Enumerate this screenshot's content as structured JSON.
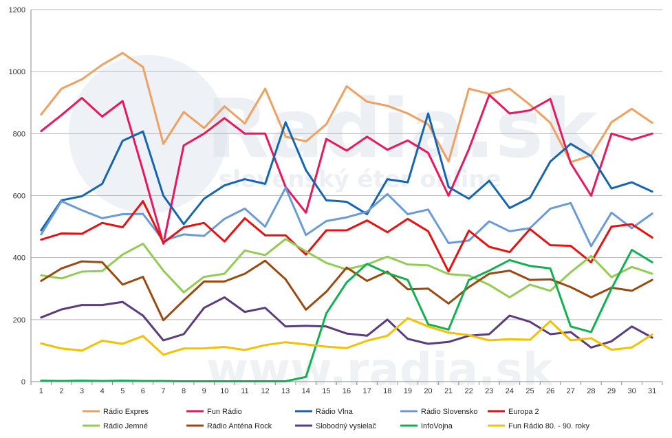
{
  "watermark": {
    "brand": "Radia.sk",
    "tagline": "slovenský éter online",
    "url": "www.radia.sk"
  },
  "chart_data": {
    "type": "line",
    "title": "",
    "xlabel": "",
    "ylabel": "",
    "ylim": [
      0,
      1200
    ],
    "yticks": [
      0,
      200,
      400,
      600,
      800,
      1000,
      1200
    ],
    "grid": true,
    "legend_position": "bottom",
    "x": [
      1,
      2,
      3,
      4,
      5,
      6,
      7,
      8,
      9,
      10,
      11,
      12,
      13,
      14,
      15,
      16,
      17,
      18,
      19,
      20,
      21,
      22,
      23,
      24,
      25,
      26,
      27,
      28,
      29,
      30,
      31
    ],
    "series": [
      {
        "name": "Rádio Expres",
        "color": "#f0a060",
        "values": [
          862,
          945,
          975,
          1022,
          1060,
          1015,
          767,
          870,
          818,
          888,
          833,
          945,
          790,
          775,
          830,
          953,
          903,
          890,
          865,
          830,
          710,
          945,
          928,
          945,
          893,
          835,
          708,
          730,
          837,
          880,
          835
        ]
      },
      {
        "name": "Fun Rádio",
        "color": "#e8185a",
        "values": [
          808,
          860,
          915,
          855,
          905,
          680,
          445,
          762,
          800,
          850,
          800,
          800,
          628,
          545,
          783,
          745,
          790,
          748,
          778,
          738,
          600,
          750,
          925,
          865,
          875,
          912,
          705,
          600,
          800,
          780,
          800
        ]
      },
      {
        "name": "Rádio Vlna",
        "color": "#1565b0",
        "values": [
          488,
          585,
          598,
          638,
          777,
          807,
          600,
          508,
          590,
          633,
          653,
          638,
          837,
          682,
          585,
          580,
          540,
          653,
          643,
          865,
          628,
          590,
          648,
          560,
          593,
          710,
          767,
          728,
          623,
          643,
          613
        ]
      },
      {
        "name": "Rádio Slovensko",
        "color": "#6a9bd8",
        "values": [
          475,
          582,
          553,
          527,
          540,
          541,
          455,
          475,
          470,
          525,
          558,
          500,
          625,
          473,
          518,
          530,
          548,
          605,
          540,
          555,
          447,
          455,
          517,
          485,
          495,
          558,
          576,
          437,
          545,
          495,
          542
        ]
      },
      {
        "name": "Europa 2",
        "color": "#e81010",
        "values": [
          458,
          478,
          477,
          512,
          498,
          582,
          448,
          498,
          512,
          452,
          527,
          472,
          472,
          410,
          488,
          488,
          520,
          482,
          525,
          485,
          355,
          487,
          435,
          418,
          492,
          440,
          438,
          385,
          500,
          508,
          465
        ]
      },
      {
        "name": "Rádio Jemné",
        "color": "#92cc52",
        "values": [
          343,
          333,
          355,
          357,
          410,
          445,
          358,
          288,
          338,
          348,
          423,
          408,
          460,
          420,
          383,
          362,
          378,
          403,
          378,
          375,
          347,
          342,
          312,
          272,
          313,
          293,
          353,
          405,
          337,
          370,
          348
        ]
      },
      {
        "name": "Rádio Anténa Rock",
        "color": "#9a4a10",
        "values": [
          325,
          365,
          388,
          385,
          313,
          338,
          198,
          262,
          323,
          323,
          348,
          390,
          330,
          232,
          290,
          368,
          325,
          355,
          298,
          300,
          252,
          305,
          348,
          358,
          328,
          330,
          305,
          272,
          303,
          293,
          328
        ]
      },
      {
        "name": "Slobodný vysielač",
        "color": "#5a3c7c",
        "values": [
          207,
          233,
          247,
          247,
          257,
          213,
          133,
          153,
          238,
          272,
          225,
          238,
          178,
          180,
          178,
          155,
          148,
          200,
          138,
          122,
          128,
          148,
          153,
          213,
          193,
          153,
          160,
          110,
          130,
          178,
          142
        ]
      },
      {
        "name": "InfoVojna",
        "color": "#12b050",
        "values": [
          3,
          2,
          3,
          2,
          3,
          2,
          2,
          1,
          1,
          1,
          1,
          1,
          1,
          15,
          220,
          320,
          380,
          350,
          328,
          185,
          168,
          328,
          358,
          392,
          373,
          365,
          178,
          160,
          300,
          425,
          385
        ]
      },
      {
        "name": "Fun Rádio 80. - 90. roky",
        "color": "#f5c000",
        "values": [
          123,
          107,
          100,
          132,
          122,
          147,
          87,
          107,
          107,
          112,
          102,
          118,
          127,
          120,
          113,
          108,
          132,
          148,
          205,
          178,
          158,
          150,
          133,
          137,
          135,
          195,
          133,
          140,
          103,
          110,
          152
        ]
      }
    ]
  }
}
